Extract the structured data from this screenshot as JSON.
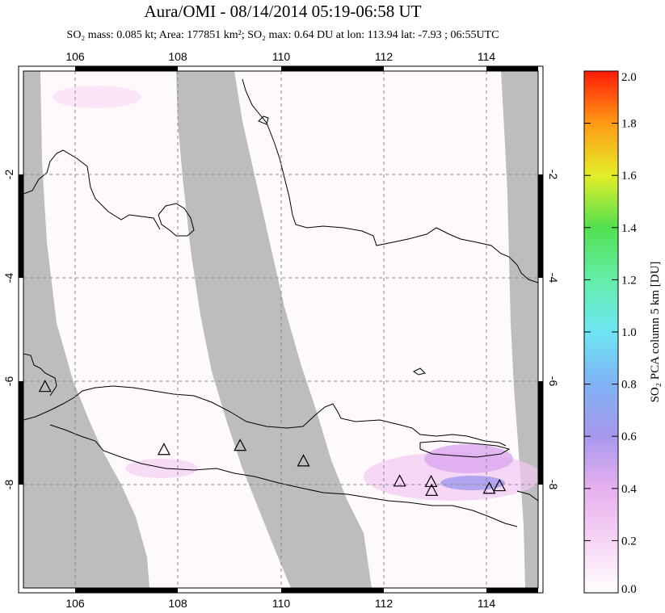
{
  "header": {
    "title": "Aura/OMI - 08/14/2014 05:19-06:58 UT",
    "subtitle": "SO₂ mass: 0.085 kt; Area: 177851 km²; SO₂ max: 0.64 DU at lon: 113.94 lat: -7.93 ; 06:55UTC"
  },
  "map": {
    "lon_range": [
      105.0,
      115.0
    ],
    "lat_range": [
      -10.0,
      0.0
    ],
    "lon_ticks": [
      "106",
      "108",
      "110",
      "112",
      "114"
    ],
    "lat_ticks": [
      "-2",
      "-4",
      "-6",
      "-8"
    ],
    "grid": "dashed",
    "colors": {
      "no_data": "#bdbdbd",
      "background": "#fefafc",
      "coastline": "#000000",
      "volcano": "#000000"
    },
    "volcanoes": [
      {
        "lon": 105.42,
        "lat": -6.1
      },
      {
        "lon": 107.73,
        "lat": -7.32
      },
      {
        "lon": 109.21,
        "lat": -7.24
      },
      {
        "lon": 110.44,
        "lat": -7.54
      },
      {
        "lon": 112.31,
        "lat": -7.93
      },
      {
        "lon": 112.92,
        "lat": -7.94
      },
      {
        "lon": 112.93,
        "lat": -8.11
      },
      {
        "lon": 114.05,
        "lat": -8.07
      },
      {
        "lon": 114.25,
        "lat": -8.02
      }
    ]
  },
  "colorbar": {
    "label": "SO₂ PCA column 5 km [DU]",
    "ticks": [
      "0.0",
      "0.2",
      "0.4",
      "0.6",
      "0.8",
      "1.0",
      "1.2",
      "1.4",
      "1.6",
      "1.8",
      "2.0"
    ],
    "range": [
      0.0,
      2.0
    ]
  }
}
